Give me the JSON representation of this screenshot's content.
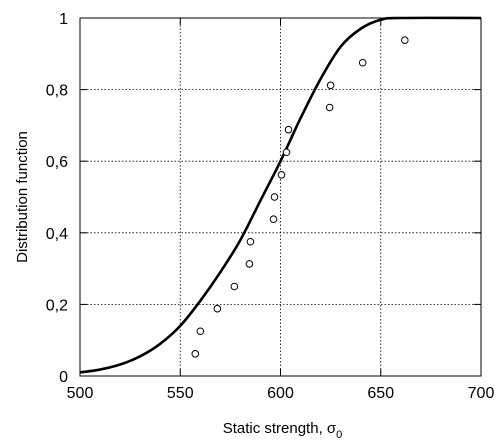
{
  "chart_data": {
    "type": "scatter",
    "xlabel": "Static strength, σ",
    "xlabel_subscript": "0",
    "ylabel": "Distribution function",
    "xlim": [
      500,
      700
    ],
    "ylim": [
      0,
      1
    ],
    "x_ticks": [
      "500",
      "550",
      "600",
      "650",
      "700"
    ],
    "y_ticks": [
      "0",
      "0,2",
      "0,4",
      "0,6",
      "0,8",
      "1"
    ],
    "x_tick_values": [
      500,
      550,
      600,
      650,
      700
    ],
    "y_tick_values": [
      0,
      0.2,
      0.4,
      0.6,
      0.8,
      1
    ],
    "grid": true,
    "grid_style": "dotted",
    "legend": "none",
    "series": [
      {
        "kind": "points",
        "marker": "open-circle",
        "points": [
          {
            "x": 557.5,
            "y": 0.062
          },
          {
            "x": 560,
            "y": 0.125
          },
          {
            "x": 568.5,
            "y": 0.188
          },
          {
            "x": 577,
            "y": 0.25
          },
          {
            "x": 584.5,
            "y": 0.313
          },
          {
            "x": 585,
            "y": 0.375
          },
          {
            "x": 596.5,
            "y": 0.438
          },
          {
            "x": 597,
            "y": 0.5
          },
          {
            "x": 600.5,
            "y": 0.562
          },
          {
            "x": 603,
            "y": 0.625
          },
          {
            "x": 604,
            "y": 0.688
          },
          {
            "x": 624.5,
            "y": 0.75
          },
          {
            "x": 625,
            "y": 0.812
          },
          {
            "x": 641,
            "y": 0.875
          },
          {
            "x": 662,
            "y": 0.938
          }
        ]
      },
      {
        "kind": "curve",
        "style": "solid-thick",
        "points": [
          {
            "x": 500,
            "y": 0.01
          },
          {
            "x": 510,
            "y": 0.018
          },
          {
            "x": 520,
            "y": 0.032
          },
          {
            "x": 530,
            "y": 0.055
          },
          {
            "x": 540,
            "y": 0.09
          },
          {
            "x": 550,
            "y": 0.14
          },
          {
            "x": 560,
            "y": 0.21
          },
          {
            "x": 570,
            "y": 0.29
          },
          {
            "x": 580,
            "y": 0.38
          },
          {
            "x": 590,
            "y": 0.49
          },
          {
            "x": 600,
            "y": 0.6
          },
          {
            "x": 610,
            "y": 0.72
          },
          {
            "x": 620,
            "y": 0.83
          },
          {
            "x": 630,
            "y": 0.92
          },
          {
            "x": 640,
            "y": 0.97
          },
          {
            "x": 650,
            "y": 0.995
          },
          {
            "x": 660,
            "y": 1
          },
          {
            "x": 700,
            "y": 1
          }
        ]
      }
    ]
  }
}
